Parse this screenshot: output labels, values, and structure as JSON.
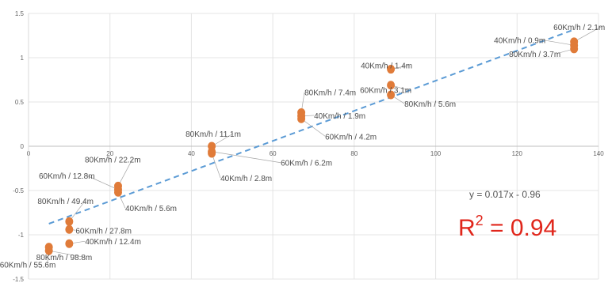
{
  "chart_data": {
    "type": "scatter",
    "title": "",
    "xlabel": "",
    "ylabel": "",
    "xlim": [
      0,
      140
    ],
    "ylim": [
      -1.5,
      1.5
    ],
    "x_ticks": [
      "0",
      "20",
      "40",
      "60",
      "80",
      "100",
      "120",
      "140"
    ],
    "y_ticks": [
      "1.5",
      "1",
      "0.5",
      "0",
      "-0.5",
      "-1",
      "-1.5"
    ],
    "grid": true,
    "marker_color": "#e07b39",
    "trendline_color": "#5b9bd5",
    "points": [
      {
        "x": 5,
        "y": -1.14,
        "label": "60Km/h / 55.6m"
      },
      {
        "x": 5,
        "y": -1.18,
        "label": "80Km/h / 98.8m"
      },
      {
        "x": 10,
        "y": -1.1,
        "label": "40Km/h / 12.4m"
      },
      {
        "x": 10,
        "y": -0.85,
        "label": "80Km/h / 49.4m"
      },
      {
        "x": 10,
        "y": -0.94,
        "label": "60Km/h / 27.8m"
      },
      {
        "x": 22,
        "y": -0.45,
        "label": "80Km/h / 22.2m"
      },
      {
        "x": 22,
        "y": -0.49,
        "label": "60Km/h / 12.8m"
      },
      {
        "x": 22,
        "y": -0.52,
        "label": "40Km/h / 5.6m"
      },
      {
        "x": 45,
        "y": 0.0,
        "label": "80Km/h / 11.1m"
      },
      {
        "x": 45,
        "y": -0.06,
        "label": "60Km/h / 6.2m"
      },
      {
        "x": 45,
        "y": -0.08,
        "label": "40Km/h / 2.8m"
      },
      {
        "x": 67,
        "y": 0.38,
        "label": "80Km/h / 7.4m"
      },
      {
        "x": 67,
        "y": 0.34,
        "label": "40Km/h / 1.9m"
      },
      {
        "x": 67,
        "y": 0.31,
        "label": "60Km/h / 4.2m"
      },
      {
        "x": 89,
        "y": 0.87,
        "label": "40Km/h / 1.4m"
      },
      {
        "x": 89,
        "y": 0.69,
        "label": "60Km/h / 3.1m"
      },
      {
        "x": 89,
        "y": 0.58,
        "label": "80Km/h / 5.6m"
      },
      {
        "x": 134,
        "y": 1.18,
        "label": "60Km/h / 2.1m"
      },
      {
        "x": 134,
        "y": 1.14,
        "label": "40Km/h / 0.9m"
      },
      {
        "x": 134,
        "y": 1.1,
        "label": "80Km/h / 3.7m"
      }
    ],
    "trendline": {
      "slope": 0.017,
      "intercept": -0.96,
      "x_range": [
        5,
        134
      ]
    },
    "annotations": {
      "equation": "y = 0.017x - 0.96",
      "r2_base": "R",
      "r2_sup": "2",
      "r2_value": " = 0.94"
    }
  }
}
